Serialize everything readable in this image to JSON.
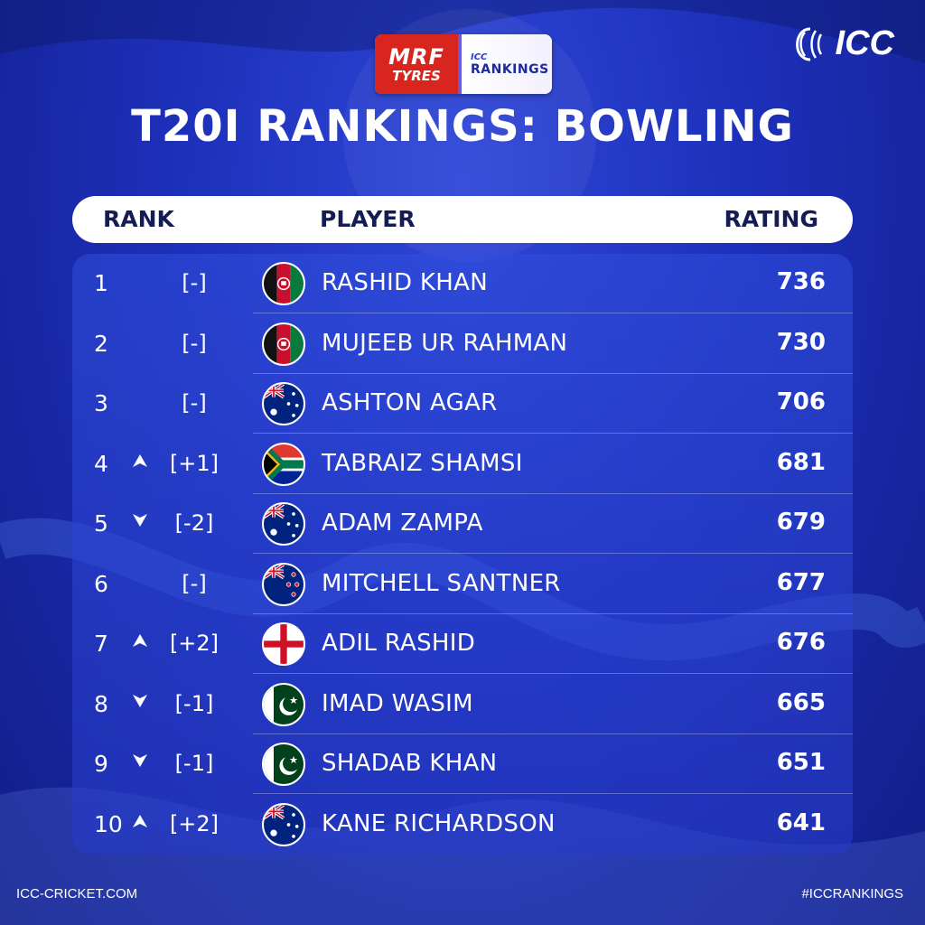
{
  "sponsor": {
    "brand_line1": "MRF",
    "brand_line2": "TYRES",
    "ranking_line1": "ICC",
    "ranking_line2": "RANKINGS"
  },
  "org_logo": "ICC",
  "title": "T20I RANKINGS: BOWLING",
  "headers": {
    "rank": "RANK",
    "player": "PLAYER",
    "rating": "RATING"
  },
  "rows": [
    {
      "rank": "1",
      "trend": "none",
      "change": "[-]",
      "flag": "afghanistan",
      "player": "RASHID KHAN",
      "rating": "736"
    },
    {
      "rank": "2",
      "trend": "none",
      "change": "[-]",
      "flag": "afghanistan",
      "player": "MUJEEB UR RAHMAN",
      "rating": "730"
    },
    {
      "rank": "3",
      "trend": "none",
      "change": "[-]",
      "flag": "australia",
      "player": "ASHTON AGAR",
      "rating": "706"
    },
    {
      "rank": "4",
      "trend": "up",
      "change": "[+1]",
      "flag": "south-africa",
      "player": "TABRAIZ SHAMSI",
      "rating": "681"
    },
    {
      "rank": "5",
      "trend": "down",
      "change": "[-2]",
      "flag": "australia",
      "player": "ADAM ZAMPA",
      "rating": "679"
    },
    {
      "rank": "6",
      "trend": "none",
      "change": "[-]",
      "flag": "new-zealand",
      "player": "MITCHELL SANTNER",
      "rating": "677"
    },
    {
      "rank": "7",
      "trend": "up",
      "change": "[+2]",
      "flag": "england",
      "player": "ADIL RASHID",
      "rating": "676"
    },
    {
      "rank": "8",
      "trend": "down",
      "change": "[-1]",
      "flag": "pakistan",
      "player": "IMAD WASIM",
      "rating": "665"
    },
    {
      "rank": "9",
      "trend": "down",
      "change": "[-1]",
      "flag": "pakistan",
      "player": "SHADAB KHAN",
      "rating": "651"
    },
    {
      "rank": "10",
      "trend": "up",
      "change": "[+2]",
      "flag": "australia",
      "player": "KANE RICHARDSON",
      "rating": "641"
    }
  ],
  "footer": {
    "website": "ICC-CRICKET.COM",
    "hashtag": "#ICCRANKINGS"
  },
  "colors": {
    "background": "#1c2fb8",
    "header_bar": "#ffffff",
    "header_text": "#141c52",
    "sponsor_red": "#d8261f"
  }
}
